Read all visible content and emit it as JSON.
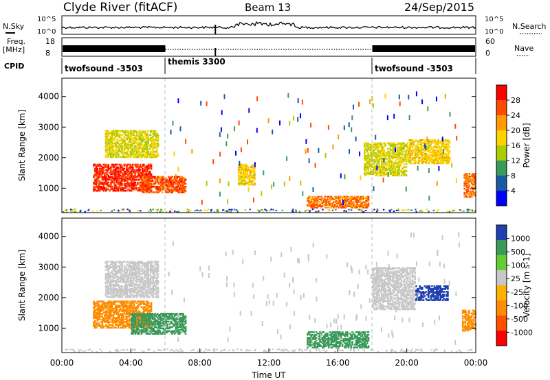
{
  "header": {
    "station": "Clyde River (fitACF)",
    "beam": "Beam 13",
    "date": "24/Sep/2015"
  },
  "panels": {
    "nsky_label": "N.Sky",
    "nsearch_label": "N.Search",
    "ticks_left_top": [
      "10^5",
      "10^0"
    ],
    "ticks_right_top": [
      "10^5",
      "10^0"
    ],
    "freq_label_1": "Freq.",
    "freq_label_2": "[MHz]",
    "freq_ticks": [
      "18",
      "8"
    ],
    "nave_label": "Nave",
    "nave_ticks": [
      "60",
      "0"
    ],
    "cpid_label": "CPID",
    "cpid_segments": [
      "twofsound -3503",
      "themis 3300",
      "twofsound -3503"
    ]
  },
  "chart_data": [
    {
      "type": "heatmap",
      "title": "",
      "ylabel": "Slant Range [km]",
      "xlabel": "Time UT",
      "x_ticks": [
        "00:00",
        "04:00",
        "08:00",
        "12:00",
        "16:00",
        "20:00",
        "00:00"
      ],
      "y_ticks": [
        "1000",
        "2000",
        "3000",
        "4000"
      ],
      "ylim": [
        200,
        4600
      ],
      "xlim_hours": [
        0,
        24
      ],
      "colorbar": {
        "label": "Power [dB]",
        "ticks": [
          "28",
          "24",
          "20",
          "16",
          "12",
          "8",
          "4"
        ],
        "colors": [
          "#ff0000",
          "#ff4a00",
          "#ff9a00",
          "#ffd200",
          "#aacc00",
          "#3a9a5a",
          "#1a5aa0",
          "#0000ff"
        ]
      },
      "blobs": [
        {
          "t0": 1.8,
          "t1": 5.2,
          "r0": 900,
          "r1": 1800,
          "v": 28
        },
        {
          "t0": 4.5,
          "t1": 7.2,
          "r0": 850,
          "r1": 1400,
          "v": 26
        },
        {
          "t0": 2.5,
          "t1": 5.6,
          "r0": 2000,
          "r1": 2900,
          "v": 16
        },
        {
          "t0": 14.2,
          "t1": 17.8,
          "r0": 350,
          "r1": 750,
          "v": 24
        },
        {
          "t0": 10.2,
          "t1": 11.2,
          "r0": 1100,
          "r1": 1800,
          "v": 18
        },
        {
          "t0": 17.5,
          "t1": 20.0,
          "r0": 1400,
          "r1": 2500,
          "v": 16
        },
        {
          "t0": 20.0,
          "t1": 22.5,
          "r0": 1800,
          "r1": 2600,
          "v": 18
        },
        {
          "t0": 23.3,
          "t1": 24.0,
          "r0": 700,
          "r1": 1500,
          "v": 24
        }
      ]
    },
    {
      "type": "heatmap",
      "title": "",
      "ylabel": "Slant Range [km]",
      "xlabel": "Time UT",
      "x_ticks": [
        "00:00",
        "04:00",
        "08:00",
        "12:00",
        "16:00",
        "20:00",
        "00:00"
      ],
      "y_ticks": [
        "1000",
        "2000",
        "3000",
        "4000"
      ],
      "ylim": [
        200,
        4600
      ],
      "xlim_hours": [
        0,
        24
      ],
      "colorbar": {
        "label": "Velocity [m s-1]",
        "ticks": [
          "1000",
          "500",
          "100",
          "25",
          "-25",
          "-100",
          "-500",
          "-1000"
        ],
        "colors": [
          "#2040b0",
          "#3a9a5a",
          "#66cc33",
          "#c8c8c8",
          "#ffb000",
          "#ff8c00",
          "#ff5000",
          "#ff0000"
        ]
      },
      "blobs": [
        {
          "t0": 1.8,
          "t1": 5.2,
          "r0": 1000,
          "r1": 1900,
          "v": -100
        },
        {
          "t0": 4.0,
          "t1": 7.2,
          "r0": 800,
          "r1": 1500,
          "v": 500
        },
        {
          "t0": 2.5,
          "t1": 5.6,
          "r0": 2000,
          "r1": 3200,
          "v": 0
        },
        {
          "t0": 14.2,
          "t1": 17.8,
          "r0": 350,
          "r1": 900,
          "v": 500
        },
        {
          "t0": 18.0,
          "t1": 20.5,
          "r0": 1600,
          "r1": 3000,
          "v": 0
        },
        {
          "t0": 20.5,
          "t1": 22.4,
          "r0": 1900,
          "r1": 2400,
          "v": 1000
        },
        {
          "t0": 23.2,
          "t1": 24.0,
          "r0": 900,
          "r1": 1600,
          "v": -100
        }
      ]
    }
  ]
}
